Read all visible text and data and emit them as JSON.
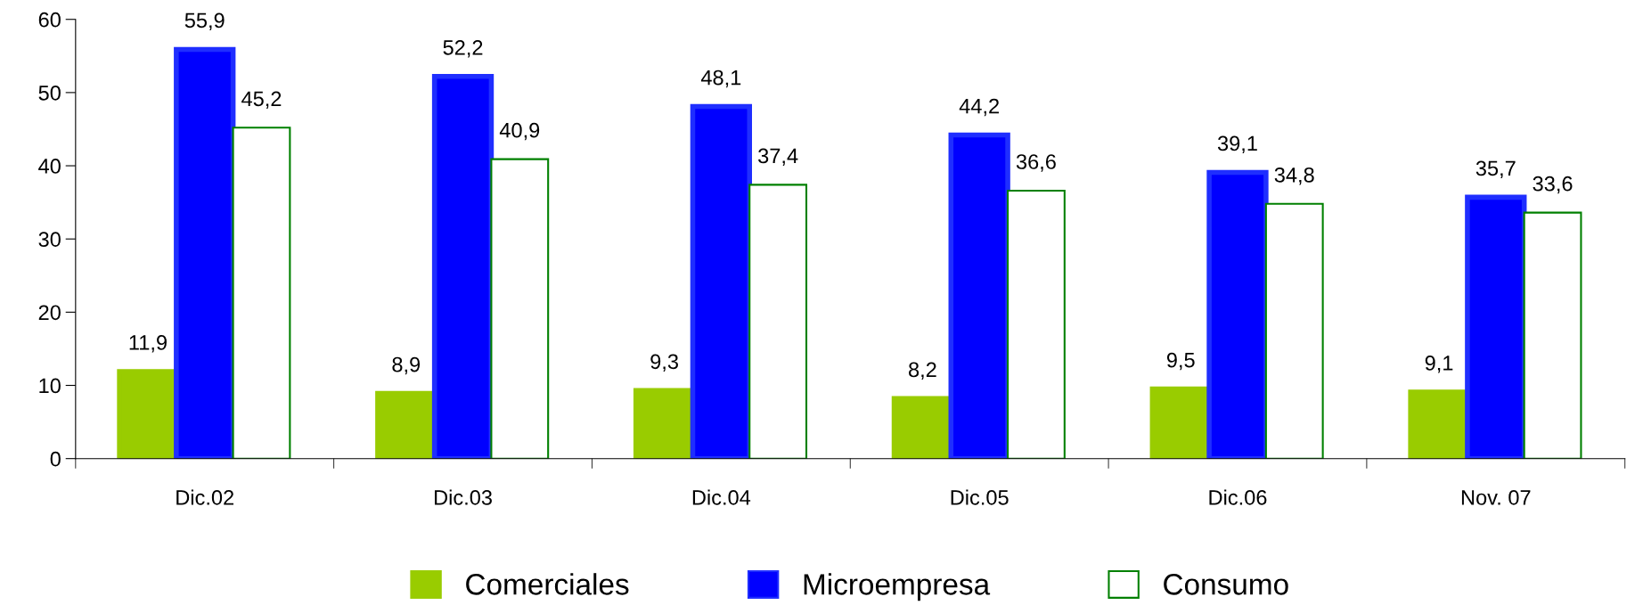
{
  "chart_data": {
    "type": "bar",
    "categories": [
      "Dic.02",
      "Dic.03",
      "Dic.04",
      "Dic.05",
      "Dic.06",
      "Nov. 07"
    ],
    "series": [
      {
        "name": "Comerciales",
        "color": "#99cc00",
        "values": [
          11.9,
          8.9,
          9.3,
          8.2,
          9.5,
          9.1
        ],
        "value_labels": [
          "11,9",
          "8,9",
          "9,3",
          "8,2",
          "9,5",
          "9,1"
        ]
      },
      {
        "name": "Microempresa",
        "color": "#0000ff",
        "values": [
          55.9,
          52.2,
          48.1,
          44.2,
          39.1,
          35.7
        ],
        "value_labels": [
          "55,9",
          "52,2",
          "48,1",
          "44,2",
          "39,1",
          "35,7"
        ]
      },
      {
        "name": "Consumo",
        "color": "#ffffff",
        "values": [
          45.2,
          40.9,
          37.4,
          36.6,
          34.8,
          33.6
        ],
        "value_labels": [
          "45,2",
          "40,9",
          "37,4",
          "36,6",
          "34,8",
          "33,6"
        ]
      }
    ],
    "ylim": [
      0,
      60
    ],
    "yticks": [
      0,
      10,
      20,
      30,
      40,
      50,
      60
    ],
    "grid": false,
    "legend": "bottom"
  }
}
